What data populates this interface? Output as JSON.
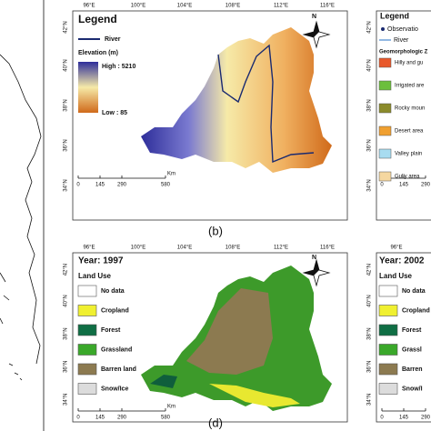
{
  "north": "N",
  "panels": [
    {
      "label": "(b)",
      "lon_ticks": [
        "96°E",
        "100°E",
        "104°E",
        "108°E",
        "112°E",
        "116°E"
      ],
      "lat_ticks": [
        "42°N",
        "40°N",
        "38°N",
        "36°N",
        "34°N"
      ],
      "legend_title": "Legend",
      "river": "River",
      "elevation_title": "Elevation (m)",
      "high": "High : 5210",
      "low": "Low : 85",
      "scale": [
        "0",
        "145",
        "290",
        "580"
      ],
      "scale_unit": "Km"
    },
    {
      "label": "(d)",
      "lon_ticks": [
        "96°E",
        "100°E",
        "104°E",
        "108°E",
        "112°E",
        "116°E"
      ],
      "lat_ticks": [
        "42°N",
        "40°N",
        "38°N",
        "36°N",
        "34°N"
      ],
      "year": "Year: 1997",
      "legend_title": "Land Use",
      "items": [
        "No data",
        "Cropland",
        "Forest",
        "Grassland",
        "Barren land",
        "Snow/Ice"
      ],
      "scale": [
        "0",
        "145",
        "290",
        "580"
      ],
      "scale_unit": "Km"
    },
    {
      "lat_ticks": [
        "42°N",
        "40°N",
        "38°N",
        "36°N",
        "34°N"
      ],
      "legend_title": "Legend",
      "observation": "Observatio",
      "river": "River",
      "zone_title": "Geomorphologic Z",
      "items": [
        "Hilly and gu",
        "Irrigated are",
        "Rocky moun",
        "Desert area",
        "Valley plain",
        "Gully area"
      ],
      "scale": [
        "0",
        "145",
        "290"
      ]
    },
    {
      "lon_ticks": [
        "96°E"
      ],
      "lat_ticks": [
        "42°N",
        "40°N",
        "38°N",
        "36°N",
        "34°N"
      ],
      "year": "Year: 2002",
      "legend_title": "Land Use",
      "items": [
        "No data",
        "Cropland",
        "Forest",
        "Grassl",
        "Barren",
        "Snow/I"
      ],
      "scale": [
        "0",
        "145",
        "290"
      ]
    }
  ]
}
